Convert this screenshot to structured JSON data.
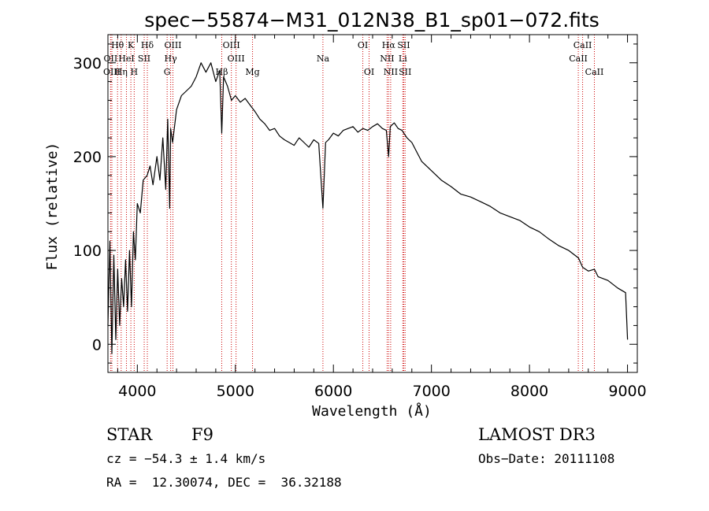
{
  "chart_data": {
    "type": "line",
    "title": "spec−55874−M31_012N38_B1_sp01−072.fits",
    "xlabel": "Wavelength (Å)",
    "ylabel": "Flux (relative)",
    "xlim": [
      3700,
      9100
    ],
    "ylim": [
      -30,
      330
    ],
    "xticks": [
      4000,
      5000,
      6000,
      7000,
      8000,
      9000
    ],
    "yticks": [
      0,
      100,
      200,
      300
    ],
    "grid": false,
    "series": [
      {
        "x": [
          3700,
          3720,
          3740,
          3760,
          3780,
          3800,
          3820,
          3840,
          3860,
          3880,
          3900,
          3920,
          3940,
          3960,
          3980,
          4000,
          4030,
          4060,
          4100,
          4130,
          4160,
          4200,
          4230,
          4260,
          4290,
          4310,
          4330,
          4340,
          4360,
          4400,
          4450,
          4500,
          4550,
          4600,
          4650,
          4700,
          4750,
          4800,
          4840,
          4861,
          4880,
          4920,
          4960,
          5000,
          5050,
          5100,
          5150,
          5200,
          5250,
          5300,
          5350,
          5400,
          5450,
          5500,
          5550,
          5600,
          5650,
          5700,
          5750,
          5800,
          5850,
          5893,
          5920,
          5950,
          6000,
          6050,
          6100,
          6150,
          6200,
          6250,
          6300,
          6350,
          6400,
          6450,
          6500,
          6540,
          6563,
          6580,
          6620,
          6660,
          6700,
          6750,
          6800,
          6850,
          6900,
          6950,
          7000,
          7100,
          7200,
          7300,
          7400,
          7500,
          7600,
          7700,
          7800,
          7900,
          8000,
          8100,
          8200,
          8300,
          8400,
          8500,
          8542,
          8600,
          8662,
          8700,
          8800,
          8900,
          8980,
          9000
        ],
        "y": [
          20,
          110,
          -10,
          95,
          5,
          80,
          20,
          70,
          40,
          90,
          35,
          100,
          40,
          120,
          90,
          150,
          140,
          175,
          180,
          190,
          170,
          200,
          175,
          220,
          165,
          240,
          145,
          230,
          215,
          250,
          265,
          270,
          275,
          285,
          300,
          290,
          300,
          280,
          292,
          225,
          285,
          275,
          260,
          265,
          258,
          262,
          255,
          248,
          240,
          235,
          228,
          230,
          222,
          218,
          215,
          212,
          220,
          215,
          210,
          218,
          214,
          145,
          215,
          218,
          225,
          222,
          228,
          230,
          232,
          226,
          230,
          228,
          232,
          235,
          230,
          228,
          200,
          232,
          236,
          230,
          228,
          220,
          215,
          205,
          195,
          190,
          185,
          175,
          168,
          160,
          157,
          152,
          147,
          140,
          136,
          132,
          125,
          120,
          112,
          105,
          100,
          92,
          82,
          78,
          80,
          72,
          68,
          60,
          55,
          5
        ]
      }
    ],
    "line_labels": [
      {
        "text": "Hθ",
        "x": 3798,
        "row": 1
      },
      {
        "text": "K",
        "x": 3934,
        "row": 1
      },
      {
        "text": "Hδ",
        "x": 4102,
        "row": 1
      },
      {
        "text": "OIII",
        "x": 4363,
        "row": 1
      },
      {
        "text": "OIII",
        "x": 4959,
        "row": 1
      },
      {
        "text": "OI",
        "x": 6300,
        "row": 1
      },
      {
        "text": "Hα",
        "x": 6563,
        "row": 1
      },
      {
        "text": "SII",
        "x": 6717,
        "row": 1
      },
      {
        "text": "CaII",
        "x": 8542,
        "row": 1
      },
      {
        "text": "OII",
        "x": 3727,
        "row": 2
      },
      {
        "text": "HeI",
        "x": 3889,
        "row": 2
      },
      {
        "text": "SII",
        "x": 4070,
        "row": 2
      },
      {
        "text": "Hγ",
        "x": 4340,
        "row": 2
      },
      {
        "text": "OIII",
        "x": 5007,
        "row": 2
      },
      {
        "text": "Na",
        "x": 5893,
        "row": 2
      },
      {
        "text": "NII",
        "x": 6548,
        "row": 2
      },
      {
        "text": "Li",
        "x": 6708,
        "row": 2
      },
      {
        "text": "CaII",
        "x": 8498,
        "row": 2
      },
      {
        "text": "OIII",
        "x": 3740,
        "row": 3
      },
      {
        "text": "Hη",
        "x": 3835,
        "row": 3
      },
      {
        "text": "H",
        "x": 3968,
        "row": 3
      },
      {
        "text": "G",
        "x": 4304,
        "row": 3
      },
      {
        "text": "Hβ",
        "x": 4861,
        "row": 3
      },
      {
        "text": "Mg",
        "x": 5175,
        "row": 3
      },
      {
        "text": "OI",
        "x": 6364,
        "row": 3
      },
      {
        "text": "NII",
        "x": 6584,
        "row": 3
      },
      {
        "text": "SII",
        "x": 6731,
        "row": 3
      },
      {
        "text": "CaII",
        "x": 8662,
        "row": 3
      }
    ],
    "line_markers": [
      3727,
      3740,
      3798,
      3835,
      3889,
      3934,
      3968,
      4070,
      4102,
      4304,
      4340,
      4363,
      4861,
      4959,
      5007,
      5175,
      5893,
      6300,
      6364,
      6548,
      6563,
      6584,
      6708,
      6717,
      6731,
      8498,
      8542,
      8662
    ],
    "marker_color": "#cc0000",
    "line_color": "#000000"
  },
  "info": {
    "class_label": "STAR",
    "subclass": "F9",
    "survey": "LAMOST DR3",
    "cz": "cz = −54.3 ± 1.4 km/s",
    "obs_date": "Obs−Date: 20111108",
    "coords": "RA =  12.30074, DEC =  36.32188"
  }
}
